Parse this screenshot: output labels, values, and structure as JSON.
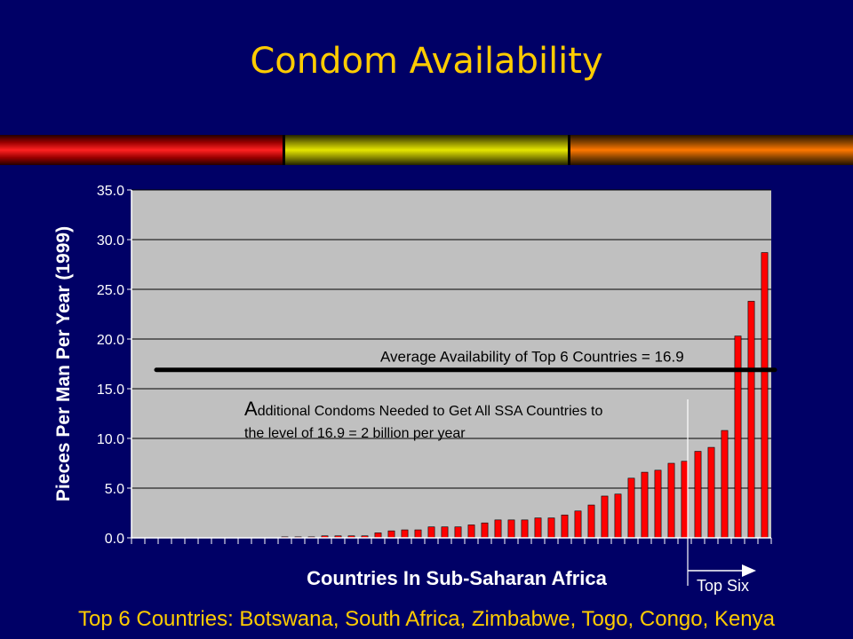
{
  "slide": {
    "title": "Condom Availability",
    "footer": "Top 6 Countries:  Botswana, South Africa, Zimbabwe, Togo, Congo, Kenya"
  },
  "colors": {
    "background": "#000066",
    "title": "#FFCC00",
    "plot_area": "#C0C0C0",
    "bars": "#FF0000",
    "average_line": "#000000"
  },
  "chart_data": {
    "type": "bar",
    "title": "",
    "xlabel": "Countries In Sub-Saharan Africa",
    "ylabel": "Pieces Per Man Per Year (1999)",
    "ylim": [
      0,
      35
    ],
    "yticks": [
      "0.0",
      "5.0",
      "10.0",
      "15.0",
      "20.0",
      "25.0",
      "30.0",
      "35.0"
    ],
    "grid": true,
    "legend": "none",
    "values": [
      0.0,
      0.0,
      0.0,
      0.0,
      0.0,
      0.0,
      0.0,
      0.0,
      0.0,
      0.0,
      0.0,
      0.1,
      0.1,
      0.1,
      0.2,
      0.2,
      0.2,
      0.2,
      0.5,
      0.7,
      0.8,
      0.8,
      1.1,
      1.1,
      1.1,
      1.3,
      1.5,
      1.8,
      1.8,
      1.8,
      2.0,
      2.0,
      2.3,
      2.7,
      3.3,
      4.2,
      4.4,
      6.0,
      6.6,
      6.8,
      7.5,
      7.7,
      8.7,
      9.1,
      10.8,
      20.3,
      23.8,
      28.7
    ],
    "average_line": {
      "value": 16.9,
      "label": "Average Availability of Top 6 Countries = 16.9"
    },
    "annotations": {
      "additional_line1_initial": "A",
      "additional_line1_rest": "dditional  Condoms Needed to Get All SSA Countries to",
      "additional_line2": "the level of 16.9 = 2 billion per year",
      "top_six": "Top Six"
    }
  }
}
